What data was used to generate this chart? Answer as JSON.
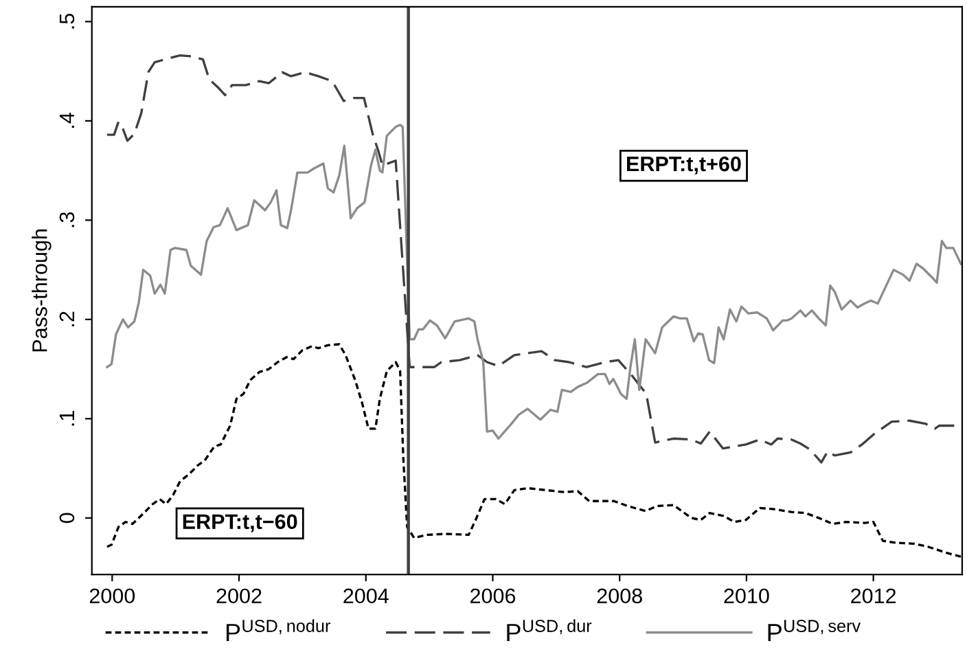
{
  "chart_data": {
    "type": "line",
    "ylabel": "Pass-through",
    "xlim": [
      1999.68,
      2013.4
    ],
    "xticks": [
      2000,
      2002,
      2004,
      2006,
      2008,
      2010,
      2012
    ],
    "ylim": [
      -0.057,
      0.515
    ],
    "yticks": [
      0,
      {
        "value": 0.1,
        "label": ".1"
      },
      {
        "value": 0.2,
        "label": ".2"
      },
      {
        "value": 0.3,
        "label": ".3"
      },
      {
        "value": 0.4,
        "label": ".4"
      },
      {
        "value": 0.5,
        "label": ".5"
      }
    ],
    "grid": false,
    "legend": "bottom",
    "ref_lines": [
      {
        "axis": "x",
        "value": 2004.67,
        "color": "#404040"
      }
    ],
    "annotations": [
      "ERPT:t,t−60",
      "ERPT:t,t+60"
    ],
    "series": [
      {
        "name": "P$^{USD,nodur}$",
        "color": "#000000",
        "line_style": "dotted",
        "x": [
          1999.92,
          1999.99,
          2000.1,
          2000.21,
          2000.32,
          2000.5,
          2000.64,
          2000.75,
          2000.85,
          2000.96,
          2001.07,
          2001.21,
          2001.35,
          2001.46,
          2001.61,
          2001.71,
          2001.86,
          2001.96,
          2002.07,
          2002.18,
          2002.32,
          2002.47,
          2002.61,
          2002.75,
          2002.86,
          2003.0,
          2003.15,
          2003.25,
          2003.4,
          2003.58,
          2003.68,
          2003.83,
          2003.94,
          2004.04,
          2004.15,
          2004.22,
          2004.33,
          2004.47,
          2004.54,
          2004.59,
          2004.65,
          2004.76,
          2004.97,
          2005.26,
          2005.62,
          2005.73,
          2005.87,
          2006.05,
          2006.19,
          2006.34,
          2006.55,
          2006.84,
          2007.13,
          2007.34,
          2007.52,
          2007.7,
          2007.91,
          2008.13,
          2008.41,
          2008.59,
          2008.85,
          2009.13,
          2009.28,
          2009.42,
          2009.64,
          2009.81,
          2009.99,
          2010.21,
          2010.42,
          2010.71,
          2010.93,
          2011.14,
          2011.36,
          2011.57,
          2011.86,
          2012.0,
          2012.15,
          2012.36,
          2012.65,
          2012.86,
          2013.15,
          2013.38
        ],
        "values": [
          -0.029,
          -0.027,
          -0.009,
          -0.004,
          -0.006,
          0.005,
          0.014,
          0.019,
          0.014,
          0.023,
          0.037,
          0.044,
          0.053,
          0.058,
          0.072,
          0.074,
          0.093,
          0.12,
          0.125,
          0.139,
          0.147,
          0.15,
          0.157,
          0.162,
          0.16,
          0.169,
          0.173,
          0.171,
          0.174,
          0.175,
          0.164,
          0.139,
          0.116,
          0.09,
          0.09,
          0.12,
          0.148,
          0.157,
          0.148,
          0.06,
          -0.009,
          -0.02,
          -0.017,
          -0.016,
          -0.017,
          -0.002,
          0.019,
          0.019,
          0.014,
          0.028,
          0.03,
          0.028,
          0.026,
          0.027,
          0.017,
          0.017,
          0.017,
          0.012,
          0.007,
          0.012,
          0.013,
          0.0,
          -0.002,
          0.005,
          0.002,
          -0.004,
          -0.002,
          0.01,
          0.009,
          0.006,
          0.005,
          0.0,
          -0.006,
          -0.004,
          -0.005,
          -0.004,
          -0.023,
          -0.025,
          -0.026,
          -0.029,
          -0.035,
          -0.039
        ]
      },
      {
        "name": "P$^{USD,dur}$",
        "color": "#404040",
        "line_style": "dashed",
        "x": [
          1999.92,
          2000.03,
          2000.1,
          2000.17,
          2000.24,
          2000.35,
          2000.46,
          2000.57,
          2000.67,
          2000.89,
          2001.07,
          2001.25,
          2001.43,
          2001.53,
          2001.68,
          2001.78,
          2001.89,
          2002.11,
          2002.32,
          2002.47,
          2002.68,
          2002.82,
          2003.04,
          2003.25,
          2003.47,
          2003.65,
          2003.79,
          2003.97,
          2004.11,
          2004.2,
          2004.26,
          2004.47,
          2004.69,
          2005.08,
          2005.19,
          2005.48,
          2005.76,
          2005.91,
          2006.09,
          2006.34,
          2006.77,
          2006.98,
          2007.2,
          2007.48,
          2007.77,
          2007.98,
          2008.2,
          2008.42,
          2008.56,
          2008.85,
          2009.13,
          2009.28,
          2009.42,
          2009.63,
          2009.99,
          2010.21,
          2010.39,
          2010.49,
          2010.71,
          2010.85,
          2011.0,
          2011.18,
          2011.28,
          2011.39,
          2011.64,
          2011.82,
          2012.0,
          2012.29,
          2012.57,
          2012.82,
          2012.97,
          2013.04,
          2013.38
        ],
        "values": [
          0.386,
          0.386,
          0.399,
          0.392,
          0.38,
          0.387,
          0.408,
          0.449,
          0.459,
          0.463,
          0.466,
          0.465,
          0.462,
          0.442,
          0.433,
          0.426,
          0.436,
          0.436,
          0.44,
          0.438,
          0.449,
          0.445,
          0.449,
          0.445,
          0.44,
          0.42,
          0.423,
          0.423,
          0.386,
          0.369,
          0.355,
          0.36,
          0.152,
          0.152,
          0.157,
          0.159,
          0.164,
          0.157,
          0.153,
          0.164,
          0.168,
          0.159,
          0.157,
          0.152,
          0.157,
          0.159,
          0.143,
          0.125,
          0.076,
          0.08,
          0.079,
          0.075,
          0.087,
          0.07,
          0.074,
          0.079,
          0.074,
          0.08,
          0.079,
          0.075,
          0.069,
          0.056,
          0.067,
          0.063,
          0.066,
          0.074,
          0.084,
          0.097,
          0.098,
          0.095,
          0.09,
          0.093,
          0.093
        ]
      },
      {
        "name": "P$^{USD,serv}$",
        "color": "#8c8c8c",
        "line_style": "solid",
        "x": [
          1999.92,
          1999.99,
          2000.06,
          2000.17,
          2000.25,
          2000.35,
          2000.42,
          2000.49,
          2000.6,
          2000.67,
          2000.76,
          2000.83,
          2000.92,
          2000.99,
          2001.17,
          2001.24,
          2001.4,
          2001.49,
          2001.6,
          2001.7,
          2001.82,
          2001.96,
          2002.14,
          2002.24,
          2002.41,
          2002.5,
          2002.59,
          2002.66,
          2002.76,
          2002.82,
          2002.92,
          2003.08,
          2003.18,
          2003.33,
          2003.4,
          2003.49,
          2003.58,
          2003.66,
          2003.76,
          2003.86,
          2003.98,
          2004.08,
          2004.15,
          2004.22,
          2004.26,
          2004.33,
          2004.47,
          2004.54,
          2004.58,
          2004.69,
          2004.76,
          2004.83,
          2004.9,
          2005.01,
          2005.12,
          2005.25,
          2005.4,
          2005.62,
          2005.71,
          2005.76,
          2005.85,
          2005.91,
          2006.0,
          2006.09,
          2006.27,
          2006.41,
          2006.55,
          2006.75,
          2006.91,
          2007.02,
          2007.09,
          2007.23,
          2007.34,
          2007.48,
          2007.66,
          2007.77,
          2007.84,
          2007.9,
          2007.95,
          2008.02,
          2008.11,
          2008.17,
          2008.24,
          2008.31,
          2008.41,
          2008.56,
          2008.67,
          2008.85,
          2008.95,
          2009.06,
          2009.17,
          2009.24,
          2009.31,
          2009.41,
          2009.49,
          2009.56,
          2009.64,
          2009.74,
          2009.84,
          2009.92,
          2010.03,
          2010.17,
          2010.32,
          2010.42,
          2010.57,
          2010.64,
          2010.71,
          2010.85,
          2010.93,
          2011.03,
          2011.14,
          2011.25,
          2011.32,
          2011.39,
          2011.5,
          2011.64,
          2011.75,
          2011.86,
          2011.96,
          2012.07,
          2012.18,
          2012.32,
          2012.47,
          2012.57,
          2012.68,
          2012.79,
          2012.93,
          2013.0,
          2013.08,
          2013.15,
          2013.26,
          2013.38
        ],
        "values": [
          0.152,
          0.155,
          0.185,
          0.2,
          0.192,
          0.198,
          0.217,
          0.25,
          0.244,
          0.226,
          0.235,
          0.226,
          0.27,
          0.272,
          0.27,
          0.254,
          0.245,
          0.279,
          0.293,
          0.295,
          0.312,
          0.29,
          0.295,
          0.32,
          0.31,
          0.318,
          0.33,
          0.295,
          0.292,
          0.31,
          0.348,
          0.348,
          0.352,
          0.357,
          0.332,
          0.328,
          0.345,
          0.375,
          0.302,
          0.312,
          0.318,
          0.355,
          0.371,
          0.35,
          0.348,
          0.385,
          0.394,
          0.396,
          0.394,
          0.18,
          0.18,
          0.19,
          0.19,
          0.199,
          0.194,
          0.181,
          0.198,
          0.201,
          0.198,
          0.18,
          0.157,
          0.087,
          0.088,
          0.08,
          0.093,
          0.104,
          0.11,
          0.099,
          0.109,
          0.107,
          0.129,
          0.127,
          0.132,
          0.136,
          0.145,
          0.145,
          0.135,
          0.14,
          0.134,
          0.125,
          0.12,
          0.152,
          0.18,
          0.129,
          0.18,
          0.166,
          0.192,
          0.203,
          0.201,
          0.201,
          0.178,
          0.186,
          0.185,
          0.159,
          0.156,
          0.192,
          0.18,
          0.21,
          0.198,
          0.213,
          0.206,
          0.207,
          0.201,
          0.189,
          0.199,
          0.199,
          0.201,
          0.209,
          0.203,
          0.209,
          0.201,
          0.194,
          0.234,
          0.228,
          0.21,
          0.219,
          0.212,
          0.216,
          0.219,
          0.216,
          0.231,
          0.25,
          0.245,
          0.239,
          0.256,
          0.251,
          0.242,
          0.237,
          0.279,
          0.272,
          0.272,
          0.256
        ]
      }
    ]
  }
}
